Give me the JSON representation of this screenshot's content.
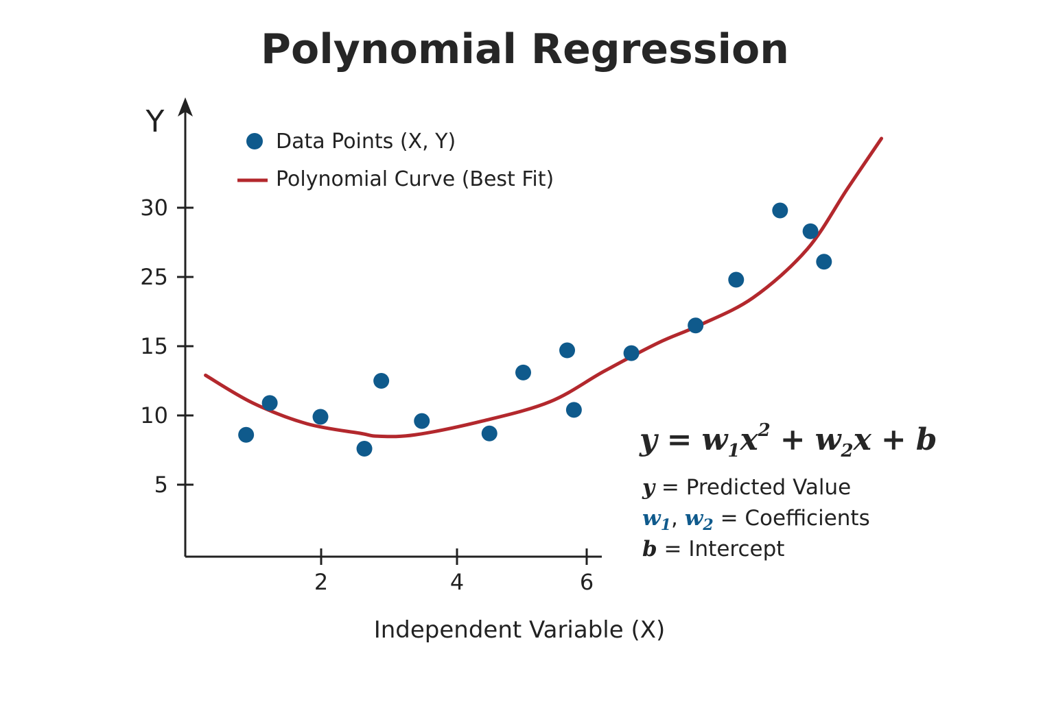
{
  "chart_data": {
    "type": "scatter",
    "title": "Polynomial Regression",
    "xlabel": "Independent Variable (X)",
    "ylabel": "Y",
    "x_ticks": [
      2,
      4,
      6
    ],
    "y_ticks": [
      5,
      10,
      15,
      25,
      30
    ],
    "grid": false,
    "legend_position": "top-left",
    "series": [
      {
        "name": "Data Points (X, Y)",
        "kind": "scatter",
        "color": "#0f5a8c",
        "points": [
          {
            "x": 0.9,
            "y": 8.6
          },
          {
            "x": 1.25,
            "y": 10.9
          },
          {
            "x": 2.0,
            "y": 9.9
          },
          {
            "x": 2.65,
            "y": 7.6
          },
          {
            "x": 2.9,
            "y": 12.5
          },
          {
            "x": 3.5,
            "y": 9.6
          },
          {
            "x": 4.5,
            "y": 8.7
          },
          {
            "x": 5.0,
            "y": 13.1
          },
          {
            "x": 5.65,
            "y": 14.7
          },
          {
            "x": 5.75,
            "y": 10.4
          },
          {
            "x": 6.6,
            "y": 14.5
          },
          {
            "x": 7.55,
            "y": 18.0
          },
          {
            "x": 8.15,
            "y": 24.6
          },
          {
            "x": 8.8,
            "y": 29.8
          },
          {
            "x": 9.25,
            "y": 28.3
          },
          {
            "x": 9.45,
            "y": 26.1
          }
        ]
      },
      {
        "name": "Polynomial Curve (Best Fit)",
        "kind": "line",
        "color": "#b3282d",
        "curve": [
          {
            "x": 0.3,
            "y": 12.9
          },
          {
            "x": 1.0,
            "y": 10.9
          },
          {
            "x": 1.8,
            "y": 9.4
          },
          {
            "x": 2.6,
            "y": 8.7
          },
          {
            "x": 2.85,
            "y": 8.5
          },
          {
            "x": 3.4,
            "y": 8.6
          },
          {
            "x": 4.4,
            "y": 9.6
          },
          {
            "x": 5.4,
            "y": 11.0
          },
          {
            "x": 6.2,
            "y": 13.2
          },
          {
            "x": 7.0,
            "y": 15.5
          },
          {
            "x": 7.6,
            "y": 18.0
          },
          {
            "x": 8.4,
            "y": 22.0
          },
          {
            "x": 9.2,
            "y": 27.0
          },
          {
            "x": 9.8,
            "y": 31.4
          },
          {
            "x": 10.3,
            "y": 35.0
          }
        ]
      }
    ]
  },
  "equation": {
    "y": "y",
    "eq": "=",
    "w1": "w",
    "w1_sub": "1",
    "x_sq": "x",
    "sq": "2",
    "plus1": "+",
    "w2": "w",
    "w2_sub": "2",
    "x": "x",
    "plus2": "+",
    "b": "b"
  },
  "definitions": {
    "line1_var": "y",
    "line1_text": " = Predicted Value",
    "line2_w1": "w",
    "line2_w1_sub": "1",
    "line2_sep": ", ",
    "line2_w2": "w",
    "line2_w2_sub": "2",
    "line2_text": " = Coefficients",
    "line3_var": "b",
    "line3_text": " = Intercept"
  },
  "colors": {
    "points": "#0f5a8c",
    "curve": "#b3282d",
    "axis": "#222222",
    "coefficient_highlight": "#0f5a8c"
  }
}
